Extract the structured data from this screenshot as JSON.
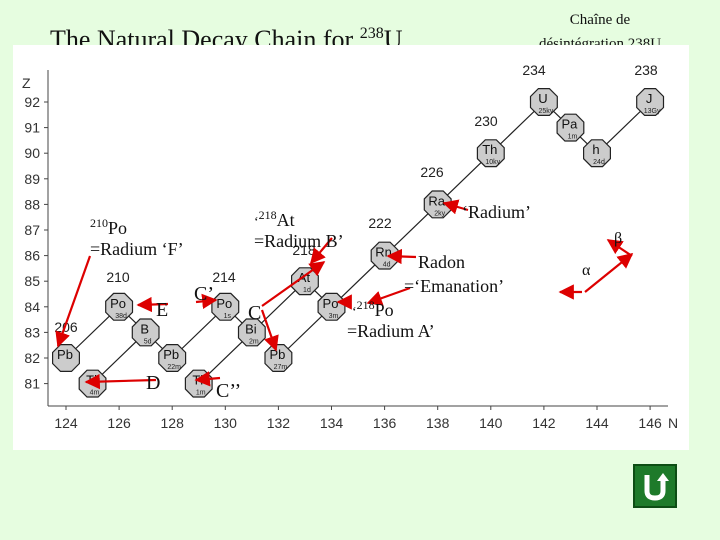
{
  "title": {
    "text": "The Natural Decay Chain for ",
    "sup": "238",
    "element": "U"
  },
  "subtitle": {
    "line1": "Chaîne de",
    "line2": "désintégration 238U"
  },
  "axes": {
    "y_label": "Z",
    "x_label": "N",
    "z_ticks": [
      "92",
      "91",
      "90",
      "89",
      "88",
      "87",
      "86",
      "85",
      "84",
      "83",
      "82",
      "81"
    ],
    "n_ticks": [
      "124",
      "126",
      "128",
      "130",
      "132",
      "134",
      "136",
      "138",
      "140",
      "142",
      "144",
      "146"
    ]
  },
  "nuclides": [
    {
      "sym": "U",
      "hl": "25ky",
      "N": 142,
      "Z": 92
    },
    {
      "sym": "J",
      "hl": "13Gy",
      "N": 146,
      "Z": 92
    },
    {
      "sym": "Pa",
      "hl": "1m",
      "N": 143,
      "Z": 91
    },
    {
      "sym": "Th",
      "hl": "10ky",
      "N": 140,
      "Z": 90
    },
    {
      "sym": "h",
      "hl": "24d",
      "N": 144,
      "Z": 90
    },
    {
      "sym": "Ra",
      "hl": "2ky",
      "N": 138,
      "Z": 88
    },
    {
      "sym": "Rn",
      "hl": "4d",
      "N": 136,
      "Z": 86
    },
    {
      "sym": "At",
      "hl": "1d",
      "N": 133,
      "Z": 85
    },
    {
      "sym": "Po",
      "hl": "3m",
      "N": 134,
      "Z": 84
    },
    {
      "sym": "Po",
      "hl": "1s",
      "N": 130,
      "Z": 84
    },
    {
      "sym": "Po",
      "hl": "38d",
      "N": 126,
      "Z": 84
    },
    {
      "sym": "Bi",
      "hl": "2m",
      "N": 131,
      "Z": 83
    },
    {
      "sym": "B",
      "hl": "5d",
      "N": 127,
      "Z": 83
    },
    {
      "sym": "Pb",
      "hl": "27m",
      "N": 132,
      "Z": 82
    },
    {
      "sym": "Pb",
      "hl": "22m",
      "N": 128,
      "Z": 82
    },
    {
      "sym": "Pb",
      "hl": "",
      "N": 124,
      "Z": 82
    },
    {
      "sym": "Tl",
      "hl": "1m",
      "N": 129,
      "Z": 81
    },
    {
      "sym": "Tl",
      "hl": "4m",
      "N": 125,
      "Z": 81
    }
  ],
  "mass_labels": [
    "234",
    "238",
    "230",
    "226",
    "222",
    "218",
    "214",
    "210",
    "206"
  ],
  "annotations": {
    "radium": "‘Radium’",
    "radon_1": "Radon",
    "radon_2": "=‘Emanation’",
    "at218_sup": "218",
    "at218_sym": "At",
    "at218_eq": "=Radium B’",
    "po218_sup": "218",
    "po218_sym": "Po",
    "po218_eq": "=Radium A’",
    "po210_sup": "210",
    "po210_sym": "Po",
    "po210_eq": "=Radium ‘F’",
    "E": "E",
    "C_prime": "C’",
    "C": "C",
    "D": "D",
    "C_dprime": "C’’",
    "beta": "β",
    "alpha": "α"
  },
  "colors": {
    "background": "#e6fde0",
    "panel": "#ffffff",
    "arrow": "#dd0000",
    "node_fill": "#cccccc",
    "home_button": "#1e7a2a"
  },
  "icons": {
    "home": "u-turn-arrow-icon"
  }
}
